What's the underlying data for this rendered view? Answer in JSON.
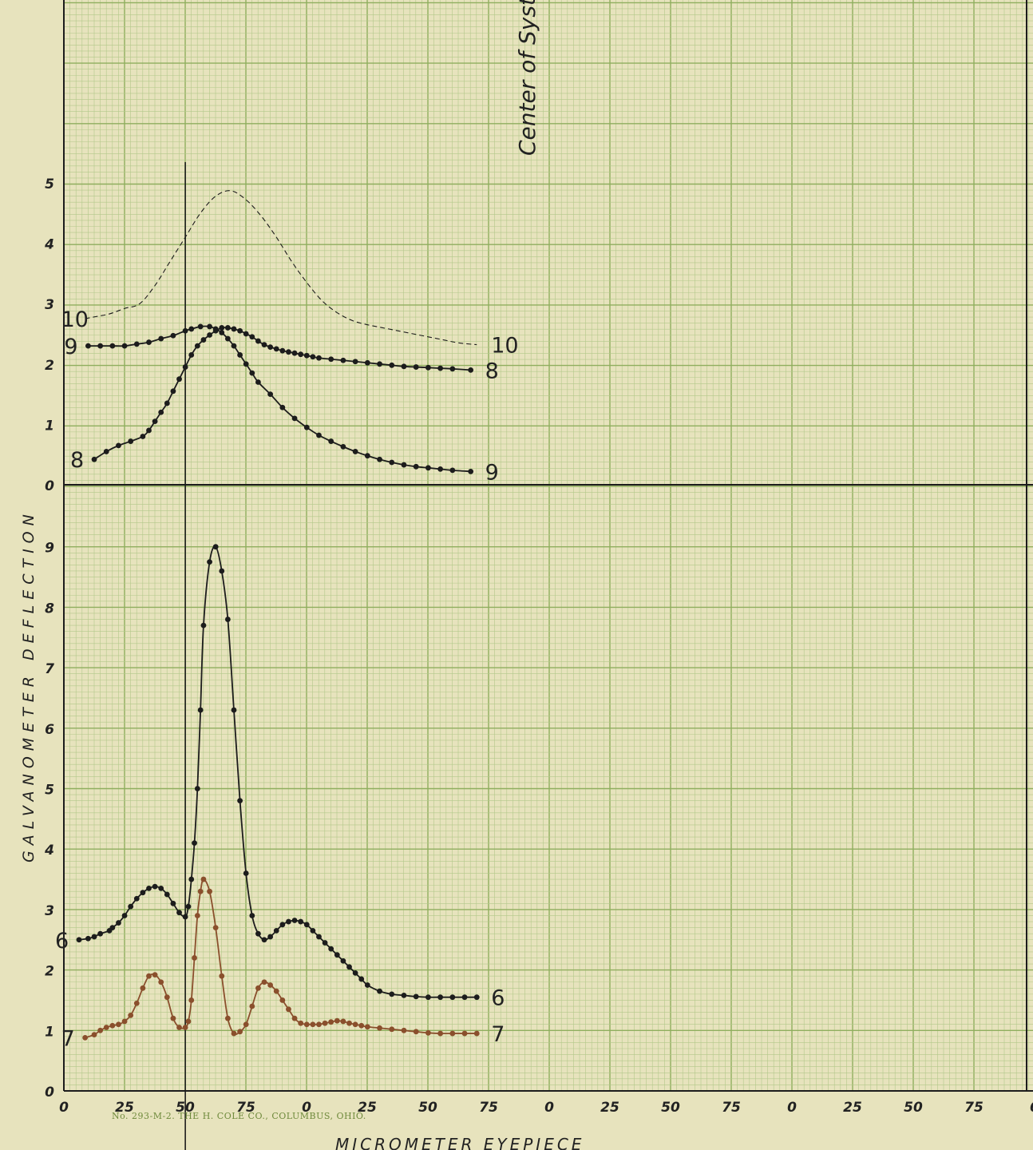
{
  "chart_data": [
    {
      "type": "line",
      "panel": "upper",
      "ylabel": "GALVANOMETER DEFLECTION",
      "xlabel": "MICROMETER EYEPIECE",
      "x_tick_labels": [
        "0",
        "25",
        "50",
        "75",
        "0",
        "25",
        "50",
        "75",
        "0",
        "25",
        "50",
        "75",
        "0",
        "25",
        "50",
        "75",
        "0"
      ],
      "y_tick_labels": [
        "0",
        "1",
        "2",
        "3",
        "4",
        "5"
      ],
      "ylim": [
        0,
        5
      ],
      "annotation": "Center of System",
      "series": [
        {
          "name": "10",
          "label_left": "10",
          "label_right": "10",
          "style": "dashed",
          "x": [
            35,
            50,
            75,
            100,
            125,
            150,
            175,
            200,
            225,
            250,
            275,
            300,
            325,
            350,
            375,
            400,
            425,
            450,
            475,
            500,
            525,
            550,
            575,
            600,
            625,
            650,
            680
          ],
          "y": [
            2.75,
            2.78,
            2.83,
            2.92,
            3.0,
            3.3,
            3.7,
            4.1,
            4.5,
            4.78,
            4.87,
            4.72,
            4.45,
            4.1,
            3.7,
            3.35,
            3.05,
            2.85,
            2.72,
            2.65,
            2.6,
            2.55,
            2.5,
            2.45,
            2.4,
            2.35,
            2.32
          ],
          "points": false
        },
        {
          "name": "9",
          "label_left": "9",
          "label_right": "9",
          "style": "solid",
          "x": [
            40,
            60,
            80,
            100,
            120,
            140,
            160,
            180,
            200,
            210,
            225,
            240,
            250,
            260,
            270,
            280,
            290,
            300,
            310,
            320,
            340,
            360,
            380,
            400,
            420,
            440,
            460,
            480,
            500,
            520,
            540,
            560,
            580,
            600,
            620,
            640,
            670
          ],
          "y": [
            2.3,
            2.3,
            2.3,
            2.3,
            2.33,
            2.36,
            2.42,
            2.47,
            2.55,
            2.58,
            2.62,
            2.62,
            2.58,
            2.52,
            2.42,
            2.3,
            2.15,
            2.0,
            1.85,
            1.7,
            1.5,
            1.28,
            1.1,
            0.95,
            0.82,
            0.72,
            0.63,
            0.55,
            0.48,
            0.42,
            0.37,
            0.33,
            0.3,
            0.28,
            0.26,
            0.24,
            0.22
          ],
          "points": true
        },
        {
          "name": "8",
          "label_left": "8",
          "label_right": "8",
          "style": "solid",
          "x": [
            50,
            70,
            90,
            110,
            130,
            140,
            150,
            160,
            170,
            180,
            190,
            200,
            210,
            220,
            230,
            240,
            250,
            260,
            270,
            280,
            290,
            300,
            310,
            320,
            330,
            340,
            350,
            360,
            370,
            380,
            390,
            400,
            410,
            420,
            440,
            460,
            480,
            500,
            520,
            540,
            560,
            580,
            600,
            620,
            640,
            670
          ],
          "y": [
            0.42,
            0.55,
            0.65,
            0.72,
            0.8,
            0.9,
            1.05,
            1.2,
            1.35,
            1.55,
            1.75,
            1.95,
            2.15,
            2.3,
            2.4,
            2.48,
            2.55,
            2.6,
            2.6,
            2.58,
            2.55,
            2.5,
            2.45,
            2.38,
            2.32,
            2.28,
            2.25,
            2.22,
            2.2,
            2.18,
            2.16,
            2.14,
            2.12,
            2.1,
            2.08,
            2.06,
            2.04,
            2.02,
            2.0,
            1.98,
            1.96,
            1.95,
            1.94,
            1.93,
            1.92,
            1.9
          ],
          "points": true
        }
      ]
    },
    {
      "type": "line",
      "panel": "lower",
      "y_tick_labels": [
        "0",
        "1",
        "2",
        "3",
        "4",
        "5",
        "6",
        "7",
        "8",
        "9"
      ],
      "ylim": [
        0,
        9
      ],
      "series": [
        {
          "name": "6",
          "label_left": "6",
          "label_right": "6",
          "style": "solid",
          "color": "#1c1c1c",
          "x": [
            25,
            40,
            50,
            60,
            75,
            80,
            90,
            100,
            110,
            120,
            130,
            140,
            150,
            160,
            170,
            180,
            190,
            200,
            205,
            210,
            215,
            220,
            225,
            230,
            240,
            250,
            260,
            270,
            280,
            290,
            300,
            310,
            320,
            330,
            340,
            350,
            360,
            370,
            380,
            390,
            400,
            410,
            420,
            430,
            440,
            450,
            460,
            470,
            480,
            490,
            500,
            520,
            540,
            560,
            580,
            600,
            620,
            640,
            660,
            680
          ],
          "y": [
            2.5,
            2.52,
            2.55,
            2.6,
            2.65,
            2.7,
            2.78,
            2.9,
            3.05,
            3.18,
            3.28,
            3.35,
            3.38,
            3.35,
            3.25,
            3.1,
            2.95,
            2.88,
            3.05,
            3.5,
            4.1,
            5.0,
            6.3,
            7.7,
            8.75,
            9.0,
            8.6,
            7.8,
            6.3,
            4.8,
            3.6,
            2.9,
            2.6,
            2.5,
            2.55,
            2.65,
            2.75,
            2.8,
            2.82,
            2.8,
            2.75,
            2.65,
            2.55,
            2.45,
            2.35,
            2.25,
            2.15,
            2.05,
            1.95,
            1.85,
            1.75,
            1.65,
            1.6,
            1.58,
            1.56,
            1.55,
            1.55,
            1.55,
            1.55,
            1.55
          ],
          "points": true
        },
        {
          "name": "7",
          "label_left": "7",
          "label_right": "7",
          "style": "solid",
          "color": "#8a4f2c",
          "x": [
            35,
            50,
            60,
            70,
            80,
            90,
            100,
            110,
            120,
            130,
            140,
            150,
            160,
            170,
            180,
            190,
            200,
            205,
            210,
            215,
            220,
            225,
            230,
            240,
            250,
            260,
            270,
            280,
            290,
            300,
            310,
            320,
            330,
            340,
            350,
            360,
            370,
            380,
            390,
            400,
            410,
            420,
            430,
            440,
            450,
            460,
            470,
            480,
            490,
            500,
            520,
            540,
            560,
            580,
            600,
            620,
            640,
            660,
            680
          ],
          "y": [
            0.88,
            0.93,
            1.0,
            1.05,
            1.08,
            1.1,
            1.15,
            1.25,
            1.45,
            1.7,
            1.9,
            1.92,
            1.8,
            1.55,
            1.2,
            1.05,
            1.05,
            1.15,
            1.5,
            2.2,
            2.9,
            3.3,
            3.5,
            3.3,
            2.7,
            1.9,
            1.2,
            0.95,
            0.98,
            1.1,
            1.4,
            1.7,
            1.8,
            1.75,
            1.65,
            1.5,
            1.35,
            1.2,
            1.12,
            1.1,
            1.1,
            1.1,
            1.12,
            1.14,
            1.16,
            1.15,
            1.12,
            1.1,
            1.08,
            1.06,
            1.04,
            1.02,
            1.0,
            0.98,
            0.96,
            0.95,
            0.95,
            0.95,
            0.95
          ],
          "points": true
        }
      ]
    }
  ],
  "imprint": "No. 293-M-2.   THE H. COLE CO., COLUMBUS, OHIO.",
  "colors": {
    "paper": "#e7e3bd",
    "grid_minor": "#b3c88a",
    "grid_major": "#8fae5e",
    "ink": "#1c1c1c",
    "ink_red": "#8a4f2c"
  }
}
